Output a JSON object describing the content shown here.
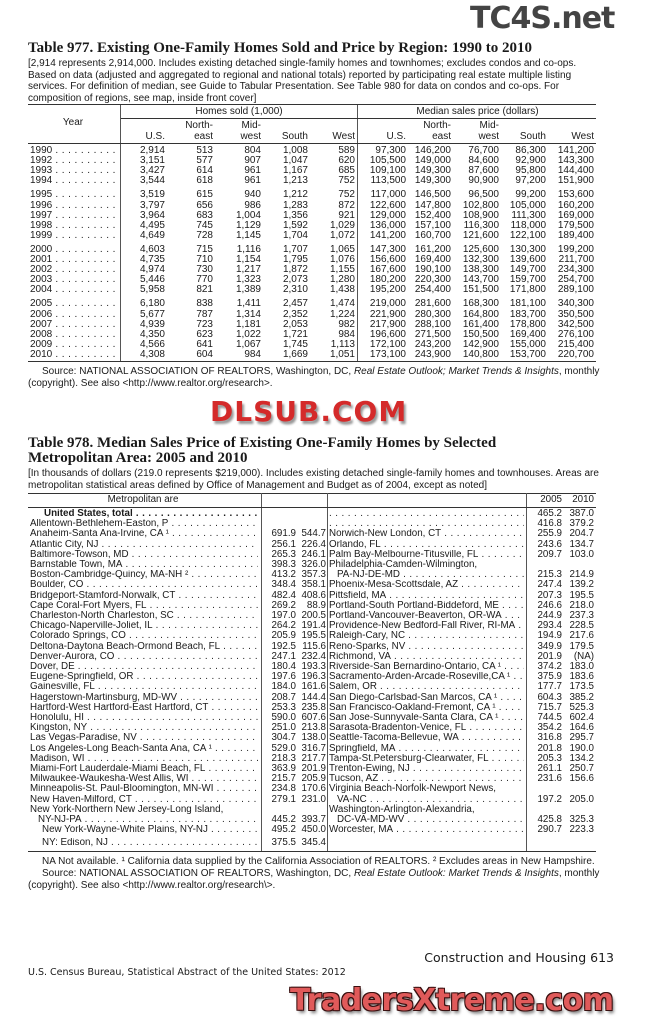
{
  "t977": {
    "title": "Table 977. Existing One-Family Homes Sold and Price by Region: 1990 to 2010",
    "note": "[2,914 represents 2,914,000. Includes existing detached single-family homes and townhomes; excludes condos and co-ops. Based on data (adjusted and aggregated to regional and national totals) reported by participating real estate multiple listing services. For definition of median, see Guide to Tabular Presentation. See Table 980 for data on condos and co-ops. For composition of regions, see map, inside front cover]",
    "year_header": "Year",
    "group1": "Homes sold (1,000)",
    "group2": "Median sales price (dollars)",
    "cols": [
      [
        "U.S."
      ],
      [
        "North-",
        "east"
      ],
      [
        "Mid-",
        "west"
      ],
      [
        "South"
      ],
      [
        "West"
      ],
      [
        "U.S."
      ],
      [
        "North-",
        "east"
      ],
      [
        "Mid-",
        "west"
      ],
      [
        "South"
      ],
      [
        "West"
      ]
    ],
    "groups": [
      [
        [
          "1990",
          "2,914",
          "513",
          "804",
          "1,008",
          "589",
          "97,300",
          "146,200",
          "76,700",
          "86,300",
          "141,200"
        ],
        [
          "1992",
          "3,151",
          "577",
          "907",
          "1,047",
          "620",
          "105,500",
          "149,000",
          "84,600",
          "92,900",
          "143,300"
        ],
        [
          "1993",
          "3,427",
          "614",
          "961",
          "1,167",
          "685",
          "109,100",
          "149,300",
          "87,600",
          "95,800",
          "144,400"
        ],
        [
          "1994",
          "3,544",
          "618",
          "961",
          "1,213",
          "752",
          "113,500",
          "149,300",
          "90,900",
          "97,200",
          "151,900"
        ]
      ],
      [
        [
          "1995",
          "3,519",
          "615",
          "940",
          "1,212",
          "752",
          "117,000",
          "146,500",
          "96,500",
          "99,200",
          "153,600"
        ],
        [
          "1996",
          "3,797",
          "656",
          "986",
          "1,283",
          "872",
          "122,600",
          "147,800",
          "102,800",
          "105,000",
          "160,200"
        ],
        [
          "1997",
          "3,964",
          "683",
          "1,004",
          "1,356",
          "921",
          "129,000",
          "152,400",
          "108,900",
          "111,300",
          "169,000"
        ],
        [
          "1998",
          "4,495",
          "745",
          "1,129",
          "1,592",
          "1,029",
          "136,000",
          "157,100",
          "116,300",
          "118,000",
          "179,500"
        ],
        [
          "1999",
          "4,649",
          "728",
          "1,145",
          "1,704",
          "1,072",
          "141,200",
          "160,700",
          "121,600",
          "122,100",
          "189,400"
        ]
      ],
      [
        [
          "2000",
          "4,603",
          "715",
          "1,116",
          "1,707",
          "1,065",
          "147,300",
          "161,200",
          "125,600",
          "130,300",
          "199,200"
        ],
        [
          "2001",
          "4,735",
          "710",
          "1,154",
          "1,795",
          "1,076",
          "156,600",
          "169,400",
          "132,300",
          "139,600",
          "211,700"
        ],
        [
          "2002",
          "4,974",
          "730",
          "1,217",
          "1,872",
          "1,155",
          "167,600",
          "190,100",
          "138,300",
          "149,700",
          "234,300"
        ],
        [
          "2003",
          "5,446",
          "770",
          "1,323",
          "2,073",
          "1,280",
          "180,200",
          "220,300",
          "143,700",
          "159,700",
          "254,700"
        ],
        [
          "2004",
          "5,958",
          "821",
          "1,389",
          "2,310",
          "1,438",
          "195,200",
          "254,400",
          "151,500",
          "171,800",
          "289,100"
        ]
      ],
      [
        [
          "2005",
          "6,180",
          "838",
          "1,411",
          "2,457",
          "1,474",
          "219,000",
          "281,600",
          "168,300",
          "181,100",
          "340,300"
        ],
        [
          "2006",
          "5,677",
          "787",
          "1,314",
          "2,352",
          "1,224",
          "221,900",
          "280,300",
          "164,800",
          "183,700",
          "350,500"
        ],
        [
          "2007",
          "4,939",
          "723",
          "1,181",
          "2,053",
          "982",
          "217,900",
          "288,100",
          "161,400",
          "178,800",
          "342,500"
        ],
        [
          "2008",
          "4,350",
          "623",
          "1,022",
          "1,721",
          "984",
          "196,600",
          "271,500",
          "150,500",
          "169,400",
          "276,100"
        ],
        [
          "2009",
          "4,566",
          "641",
          "1,067",
          "1,745",
          "1,113",
          "172,100",
          "243,200",
          "142,900",
          "155,000",
          "215,400"
        ],
        [
          "2010",
          "4,308",
          "604",
          "984",
          "1,669",
          "1,051",
          "173,100",
          "243,900",
          "140,800",
          "153,700",
          "220,700"
        ]
      ]
    ],
    "source_a": "Source: NATIONAL ASSOCIATION OF REALTORS, Washington, DC, ",
    "source_i": "Real Estate Outlook; Market Trends & Insights",
    "source_b": ", monthly (copyright). See also <http://www.realtor.org/research>."
  },
  "t978": {
    "title_1": "Table 978. Median Sales Price of Existing One-Family Homes by Selected",
    "title_2": "Metropolitan Area: 2005 and 2010",
    "note": "[In thousands of dollars (219.0 represents $219,000). Includes existing detached single-family homes and townhouses. Areas are metropolitan statistical areas defined by Office of Management and Budget as of 2004, except as noted]",
    "area_header": "Metropolitan are",
    "col_2005": "2005",
    "col_2010": "2010",
    "left": [
      [
        "United States, total",
        "",
        "",
        "bold"
      ],
      [
        "Allentown-Bethlehem-Easton, P",
        "",
        "",
        ""
      ],
      [
        "Anaheim-Santa Ana-Irvine, CA ¹",
        "691.9",
        "544.7",
        ""
      ],
      [
        "Atlantic City, NJ",
        "256.1",
        "226.4",
        ""
      ],
      [
        "Baltimore-Towson, MD",
        "265.3",
        "246.1",
        ""
      ],
      [
        "Barnstable Town, MA",
        "398.3",
        "326.0",
        ""
      ],
      [
        "Boston-Cambridge-Quincy, MA-NH ²",
        "413.2",
        "357.3",
        ""
      ],
      [
        "Boulder, CO",
        "348.4",
        "358.1",
        ""
      ],
      [
        "Bridgeport-Stamford-Norwalk, CT",
        "482.4",
        "408.6",
        ""
      ],
      [
        "Cape Coral-Fort Myers, FL",
        "269.2",
        "88.9",
        ""
      ],
      [
        "Charleston-North Charleston, SC",
        "197.0",
        "200.5",
        ""
      ],
      [
        "Chicago-Naperville-Joliet, IL",
        "264.2",
        "191.4",
        ""
      ],
      [
        "Colorado Springs, CO",
        "205.9",
        "195.5",
        ""
      ],
      [
        "Deltona-Daytona Beach-Ormond Beach, FL",
        "192.5",
        "115.6",
        ""
      ],
      [
        "Denver-Aurora, CO",
        "247.1",
        "232.4",
        ""
      ],
      [
        "Dover, DE",
        "180.4",
        "193.3",
        ""
      ],
      [
        "Eugene-Springfield, OR",
        "197.6",
        "196.3",
        ""
      ],
      [
        "Gainesville, FL",
        "184.0",
        "161.6",
        ""
      ],
      [
        "Hagerstown-Martinsburg, MD-WV",
        "208.7",
        "144.4",
        ""
      ],
      [
        "Hartford-West Hartford-East Hartford, CT",
        "253.3",
        "235.8",
        ""
      ],
      [
        "Honolulu, HI",
        "590.0",
        "607.6",
        ""
      ],
      [
        "Kingston, NY",
        "251.0",
        "213.8",
        ""
      ],
      [
        "Las Vegas-Paradise, NV",
        "304.7",
        "138.0",
        ""
      ],
      [
        "Los Angeles-Long Beach-Santa Ana, CA ¹",
        "529.0",
        "316.7",
        ""
      ],
      [
        "Madison, WI",
        "218.3",
        "217.7",
        ""
      ],
      [
        "Miami-Fort Lauderdale-Miami Beach, FL",
        "363.9",
        "201.9",
        ""
      ],
      [
        "Milwaukee-Waukesha-West Allis, WI",
        "215.7",
        "205.9",
        ""
      ],
      [
        "Minneapolis-St. Paul-Bloomington, MN-WI",
        "234.8",
        "170.6",
        ""
      ],
      [
        "New Haven-Milford, CT",
        "279.1",
        "231.0",
        ""
      ],
      [
        "New York-Northern New Jersey-Long Island,",
        "",
        "",
        "nolead"
      ],
      [
        "NY-NJ-PA",
        "445.2",
        "393.7",
        "indent"
      ],
      [
        "New York-Wayne-White Plains, NY-NJ",
        "495.2",
        "450.0",
        "indent"
      ],
      [
        "NY: Edison, NJ",
        "375.5",
        "345.4",
        "indent"
      ]
    ],
    "right": [
      [
        "",
        "465.2",
        "387.0",
        ""
      ],
      [
        "",
        "416.8",
        "379.2",
        ""
      ],
      [
        "Norwich-New London, CT",
        "255.9",
        "204.7",
        ""
      ],
      [
        "Orlando, FL",
        "243.6",
        "134.7",
        ""
      ],
      [
        "Palm Bay-Melbourne-Titusville, FL",
        "209.7",
        "103.0",
        ""
      ],
      [
        "Philadelphia-Camden-Wilmington,",
        "",
        "",
        "nolead"
      ],
      [
        "PA-NJ-DE-MD",
        "215.3",
        "214.9",
        "indent"
      ],
      [
        "Phoenix-Mesa-Scottsdale, AZ",
        "247.4",
        "139.2",
        ""
      ],
      [
        "Pittsfield, MA",
        "207.3",
        "195.5",
        ""
      ],
      [
        "Portland-South Portland-Biddeford, ME",
        "246.6",
        "218.0",
        ""
      ],
      [
        "Portland-Vancouver-Beaverton, OR-WA",
        "244.9",
        "237.3",
        ""
      ],
      [
        "Providence-New Bedford-Fall River, RI-MA",
        "293.4",
        "228.5",
        ""
      ],
      [
        "Raleigh-Cary, NC",
        "194.9",
        "217.6",
        ""
      ],
      [
        "Reno-Sparks, NV",
        "349.9",
        "179.5",
        ""
      ],
      [
        "Richmond, VA",
        "201.9",
        "(NA)",
        ""
      ],
      [
        "Riverside-San Bernardino-Ontario, CA ¹",
        "374.2",
        "183.0",
        ""
      ],
      [
        "Sacramento-Arden-Arcade-Roseville,CA ¹",
        "375.9",
        "183.6",
        ""
      ],
      [
        "Salem, OR",
        "177.7",
        "173.5",
        ""
      ],
      [
        "San Diego-Carlsbad-San Marcos, CA ¹",
        "604.3",
        "385.2",
        ""
      ],
      [
        "San Francisco-Oakland-Fremont, CA ¹",
        "715.7",
        "525.3",
        ""
      ],
      [
        "San Jose-Sunnyvale-Santa Clara, CA ¹",
        "744.5",
        "602.4",
        ""
      ],
      [
        "Sarasota-Bradenton-Venice, FL",
        "354.2",
        "164.6",
        ""
      ],
      [
        "Seattle-Tacoma-Bellevue, WA",
        "316.8",
        "295.7",
        ""
      ],
      [
        "Springfield, MA",
        "201.8",
        "190.0",
        ""
      ],
      [
        "Tampa-St.Petersburg-Clearwater, FL",
        "205.3",
        "134.2",
        ""
      ],
      [
        "Trenton-Ewing, NJ",
        "261.1",
        "250.7",
        ""
      ],
      [
        "Tucson, AZ",
        "231.6",
        "156.6",
        ""
      ],
      [
        "Virginia Beach-Norfolk-Newport News,",
        "",
        "",
        "nolead"
      ],
      [
        "VA-NC",
        "197.2",
        "205.0",
        "indent"
      ],
      [
        "Washington-Arlington-Alexandria,",
        "",
        "",
        "nolead"
      ],
      [
        "DC-VA-MD-WV",
        "425.8",
        "325.3",
        "indent"
      ],
      [
        "Worcester, MA",
        "290.7",
        "223.3",
        ""
      ]
    ],
    "footnote": "NA Not available. ¹ California data supplied by the California Association of REALTORS. ² Excludes areas in New Hampshire.",
    "source_a": "Source: NATIONAL ASSOCIATION OF REALTORS, Washington, DC, ",
    "source_i": "Real Estate Outlook: Market Trends & Insights",
    "source_b": ", monthly (copyright). See also <http://www.realtor.org/research\\>."
  },
  "footer": {
    "left": "U.S. Census Bureau, Statistical Abstract of the United States: 2012",
    "right": "Construction and Housing  613"
  },
  "watermarks": {
    "top": "TC4S.net",
    "middle": "DLSUB.COM",
    "bottom": "TradersXtreme.com"
  },
  "colors": {
    "watermark_red": "#d42a2a",
    "watermark_gray": "#3a3a3a"
  }
}
